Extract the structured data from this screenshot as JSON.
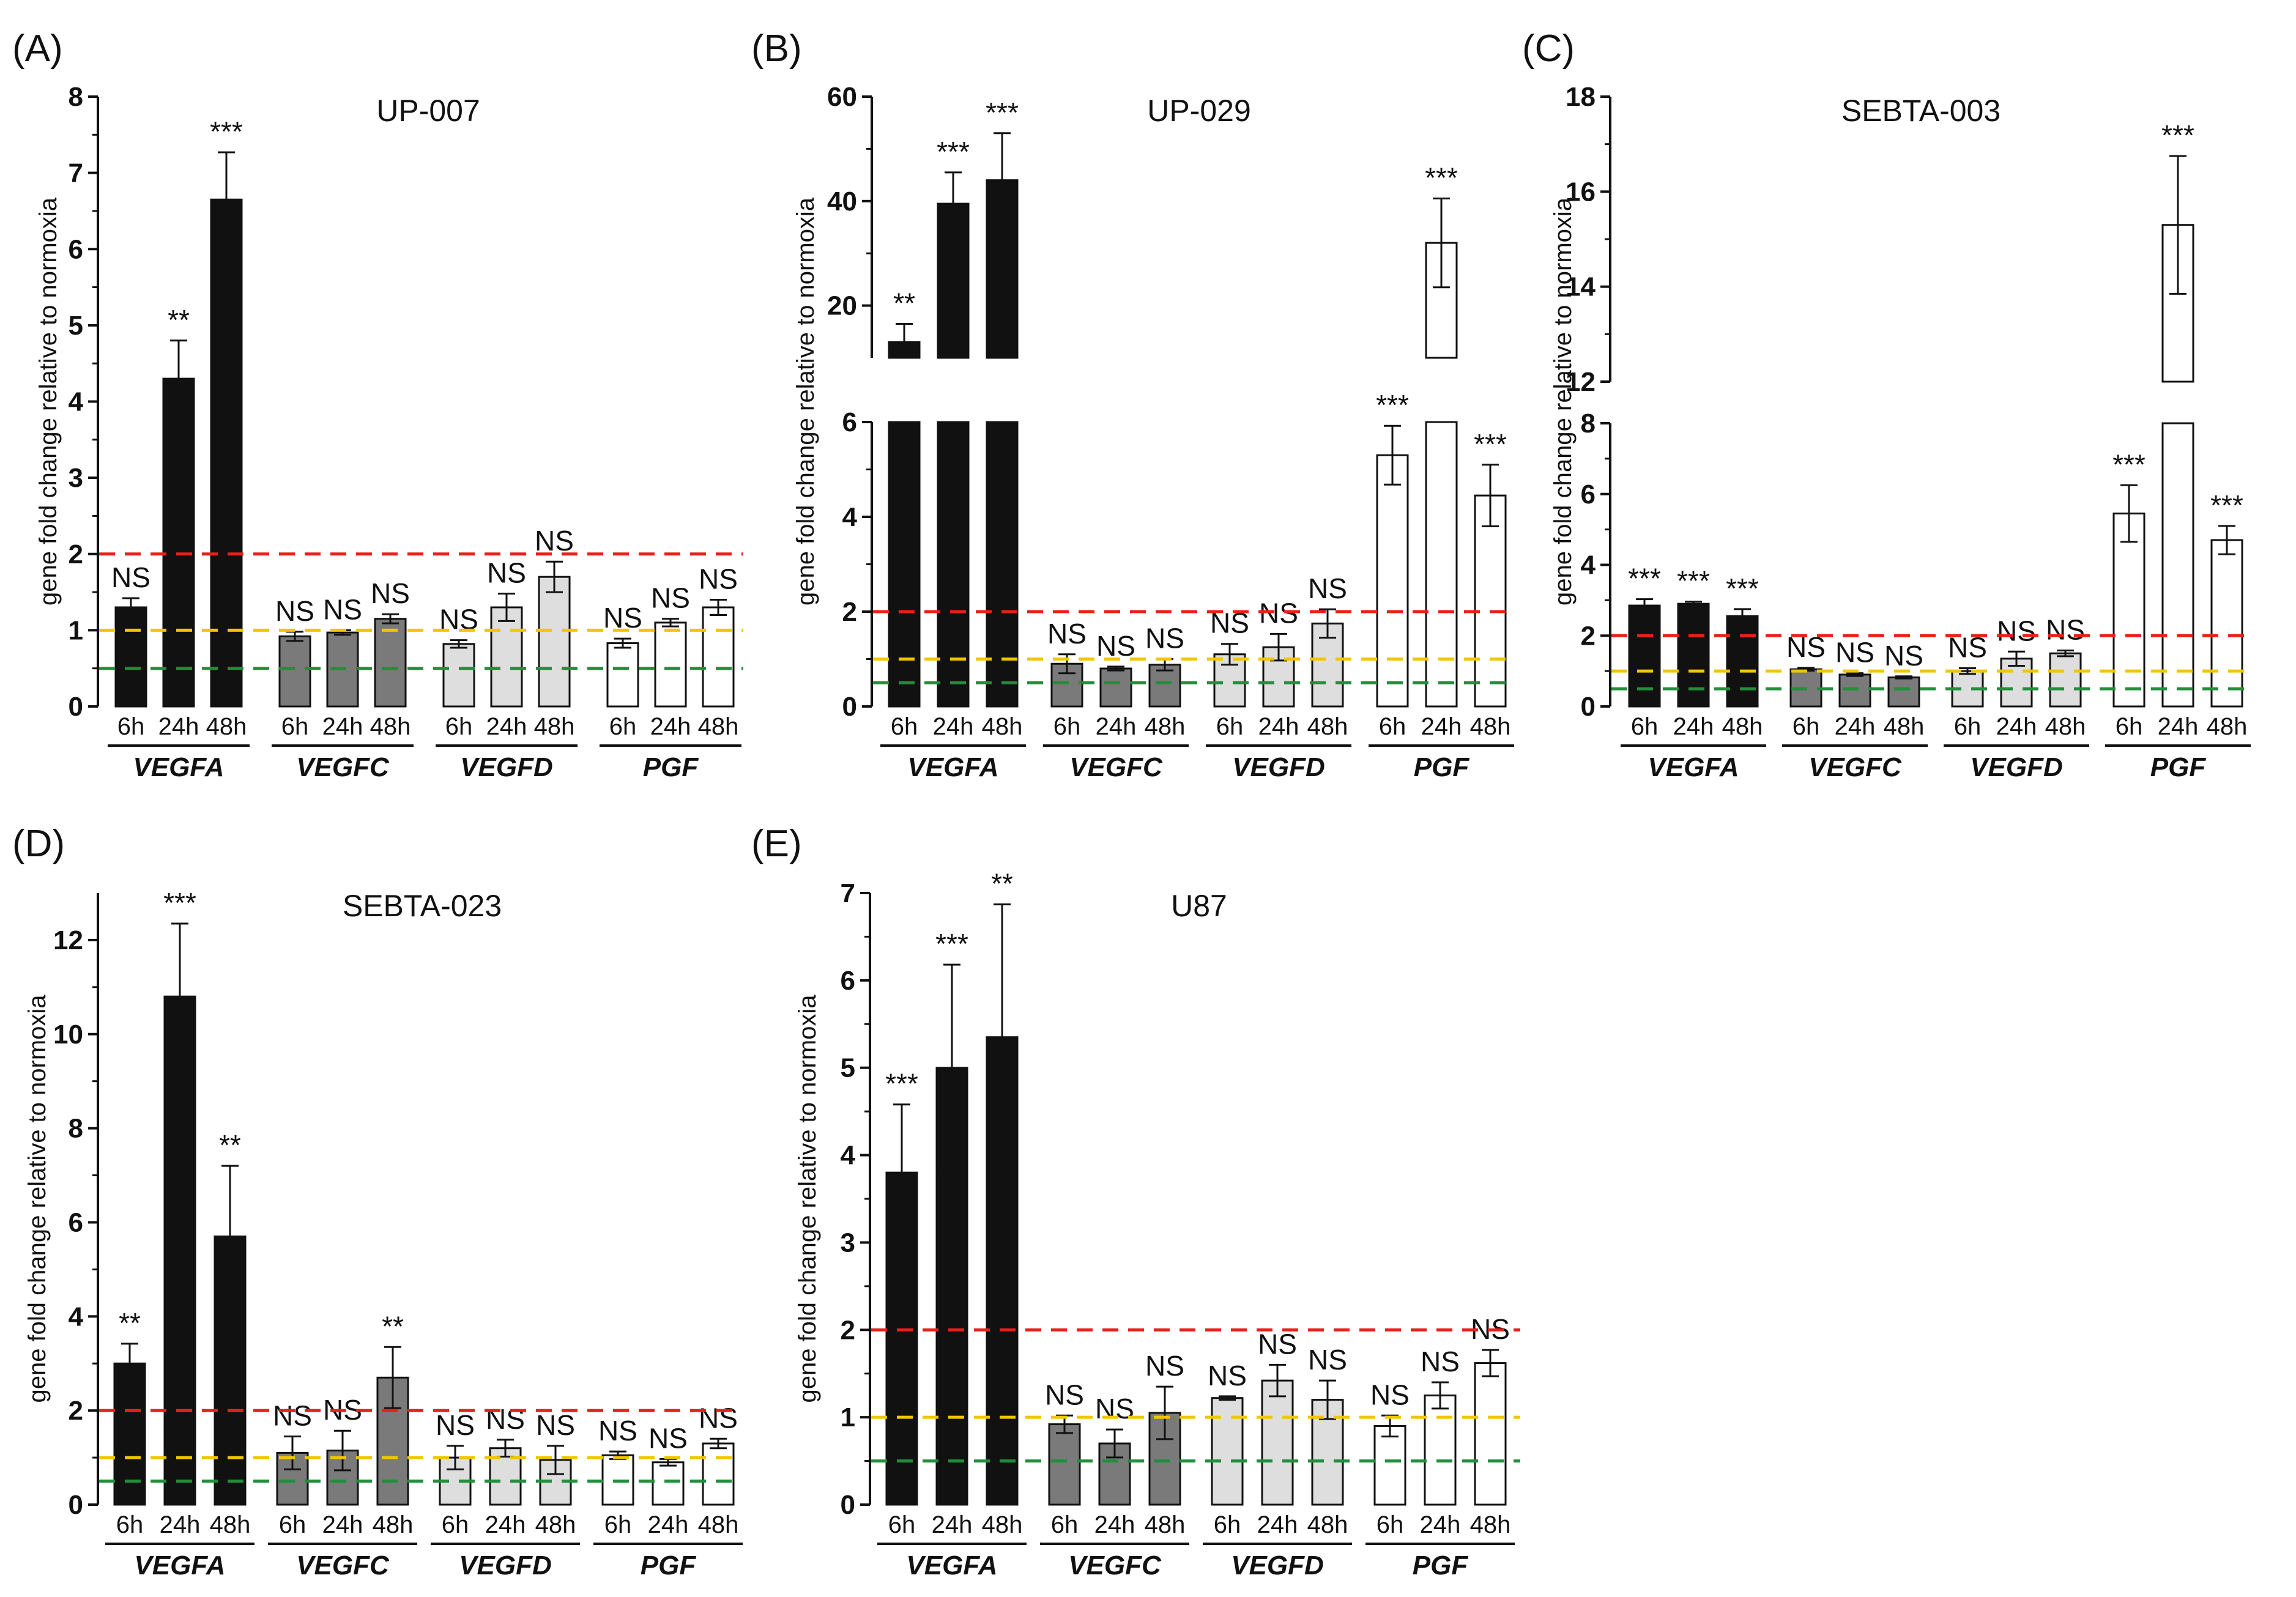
{
  "colors": {
    "VEGFA": "#111111",
    "VEGFC": "#7a7a7a",
    "VEGFD": "#dedede",
    "PGF": "#ffffff",
    "ref_2": "#e8201a",
    "ref_1": "#f2c500",
    "ref_05": "#1f8f3a"
  },
  "chart_data": [
    {
      "id": "A",
      "letter": "(A)",
      "title": "UP-007",
      "type": "bar",
      "ylabel": "gene fold change relative to normoxia",
      "genes": [
        "VEGFA",
        "VEGFC",
        "VEGFD",
        "PGF"
      ],
      "time_labels": [
        "6h",
        "24h",
        "48h"
      ],
      "reference_lines": [
        2,
        1,
        0.5
      ],
      "axis": {
        "ylim": [
          0,
          8
        ],
        "ticks": [
          0,
          1,
          2,
          3,
          4,
          5,
          6,
          7,
          8
        ],
        "tick_labels": [
          "0",
          "1",
          "2",
          "3",
          "4",
          "5",
          "6",
          "7",
          "8"
        ]
      },
      "values": [
        [
          1.3,
          4.3,
          6.65
        ],
        [
          0.92,
          0.97,
          1.15
        ],
        [
          0.82,
          1.3,
          1.7
        ],
        [
          0.83,
          1.1,
          1.3
        ]
      ],
      "errors": [
        [
          0.12,
          0.5,
          0.62
        ],
        [
          0.06,
          0.03,
          0.06
        ],
        [
          0.05,
          0.18,
          0.2
        ],
        [
          0.06,
          0.05,
          0.1
        ]
      ],
      "significance": [
        [
          "NS",
          "**",
          "***"
        ],
        [
          "NS",
          "NS",
          "NS"
        ],
        [
          "NS",
          "NS",
          "NS"
        ],
        [
          "NS",
          "NS",
          "NS"
        ]
      ]
    },
    {
      "id": "B",
      "letter": "(B)",
      "title": "UP-029",
      "type": "bar",
      "ylabel": "gene fold change relative to normoxia",
      "genes": [
        "VEGFA",
        "VEGFC",
        "VEGFD",
        "PGF"
      ],
      "time_labels": [
        "6h",
        "24h",
        "48h"
      ],
      "reference_lines": [
        2,
        1,
        0.5
      ],
      "axis": {
        "lower": {
          "ylim": [
            0,
            6
          ],
          "ticks": [
            0,
            2,
            4,
            6
          ],
          "tick_labels": [
            "0",
            "2",
            "4",
            "6"
          ]
        },
        "upper": {
          "ylim": [
            10,
            60
          ],
          "ticks": [
            20,
            40,
            60
          ],
          "tick_labels": [
            "20",
            "40",
            "60"
          ]
        }
      },
      "values": [
        [
          13,
          39.5,
          44
        ],
        [
          0.9,
          0.8,
          0.88
        ],
        [
          1.1,
          1.25,
          1.75
        ],
        [
          5.3,
          32,
          4.45
        ]
      ],
      "errors": [
        [
          3.5,
          6,
          9
        ],
        [
          0.2,
          0.04,
          0.12
        ],
        [
          0.22,
          0.28,
          0.3
        ],
        [
          0.62,
          8.5,
          0.65
        ]
      ],
      "significance": [
        [
          "**",
          "***",
          "***"
        ],
        [
          "NS",
          "NS",
          "NS"
        ],
        [
          "NS",
          "NS",
          "NS"
        ],
        [
          "***",
          "***",
          "***"
        ]
      ]
    },
    {
      "id": "C",
      "letter": "(C)",
      "title": "SEBTA-003",
      "type": "bar",
      "ylabel": "gene fold change relative to normoxia",
      "genes": [
        "VEGFA",
        "VEGFC",
        "VEGFD",
        "PGF"
      ],
      "time_labels": [
        "6h",
        "24h",
        "48h"
      ],
      "reference_lines": [
        2,
        1,
        0.5
      ],
      "axis": {
        "lower": {
          "ylim": [
            0,
            8
          ],
          "ticks": [
            0,
            2,
            4,
            6,
            8
          ],
          "tick_labels": [
            "0",
            "2",
            "4",
            "6",
            "8"
          ]
        },
        "upper": {
          "ylim": [
            12,
            18
          ],
          "ticks": [
            12,
            14,
            16,
            18
          ],
          "tick_labels": [
            "12",
            "14",
            "16",
            "18"
          ]
        }
      },
      "values": [
        [
          2.85,
          2.9,
          2.55
        ],
        [
          1.05,
          0.9,
          0.82
        ],
        [
          1.0,
          1.35,
          1.5
        ],
        [
          5.45,
          15.3,
          4.7
        ]
      ],
      "errors": [
        [
          0.18,
          0.06,
          0.2
        ],
        [
          0.04,
          0.04,
          0.03
        ],
        [
          0.08,
          0.2,
          0.08
        ],
        [
          0.8,
          1.45,
          0.4
        ]
      ],
      "significance": [
        [
          "***",
          "***",
          "***"
        ],
        [
          "NS",
          "NS",
          "NS"
        ],
        [
          "NS",
          "NS",
          "NS"
        ],
        [
          "***",
          "***",
          "***"
        ]
      ]
    },
    {
      "id": "D",
      "letter": "(D)",
      "title": "SEBTA-023",
      "type": "bar",
      "ylabel": "gene fold change relative to normoxia",
      "genes": [
        "VEGFA",
        "VEGFC",
        "VEGFD",
        "PGF"
      ],
      "time_labels": [
        "6h",
        "24h",
        "48h"
      ],
      "reference_lines": [
        2,
        1,
        0.5
      ],
      "axis": {
        "ylim": [
          0,
          13
        ],
        "ticks": [
          0,
          2,
          4,
          6,
          8,
          10,
          12
        ],
        "tick_labels": [
          "0",
          "2",
          "4",
          "6",
          "8",
          "10",
          "12"
        ]
      },
      "values": [
        [
          3.0,
          10.8,
          5.7
        ],
        [
          1.1,
          1.15,
          2.7
        ],
        [
          1.0,
          1.2,
          0.95
        ],
        [
          1.05,
          0.9,
          1.3
        ]
      ],
      "errors": [
        [
          0.42,
          1.55,
          1.5
        ],
        [
          0.35,
          0.42,
          0.65
        ],
        [
          0.25,
          0.18,
          0.3
        ],
        [
          0.08,
          0.07,
          0.1
        ]
      ],
      "significance": [
        [
          "**",
          "***",
          "**"
        ],
        [
          "NS",
          "NS",
          "**"
        ],
        [
          "NS",
          "NS",
          "NS"
        ],
        [
          "NS",
          "NS",
          "NS"
        ]
      ]
    },
    {
      "id": "E",
      "letter": "(E)",
      "title": "U87",
      "type": "bar",
      "ylabel": "gene fold change relative to normoxia",
      "genes": [
        "VEGFA",
        "VEGFC",
        "VEGFD",
        "PGF"
      ],
      "time_labels": [
        "6h",
        "24h",
        "48h"
      ],
      "reference_lines": [
        2,
        1,
        0.5
      ],
      "axis": {
        "ylim": [
          0,
          7
        ],
        "ticks": [
          0,
          1,
          2,
          3,
          4,
          5,
          6,
          7
        ],
        "tick_labels": [
          "0",
          "1",
          "2",
          "3",
          "4",
          "5",
          "6",
          "7"
        ]
      },
      "values": [
        [
          3.8,
          5.0,
          5.35
        ],
        [
          0.92,
          0.7,
          1.05
        ],
        [
          1.22,
          1.42,
          1.2
        ],
        [
          0.9,
          1.25,
          1.62
        ]
      ],
      "errors": [
        [
          0.78,
          1.18,
          1.52
        ],
        [
          0.1,
          0.16,
          0.3
        ],
        [
          0.02,
          0.18,
          0.22
        ],
        [
          0.12,
          0.15,
          0.15
        ]
      ],
      "significance": [
        [
          "***",
          "***",
          "**"
        ],
        [
          "NS",
          "NS",
          "NS"
        ],
        [
          "NS",
          "NS",
          "NS"
        ],
        [
          "NS",
          "NS",
          "NS"
        ]
      ]
    }
  ]
}
